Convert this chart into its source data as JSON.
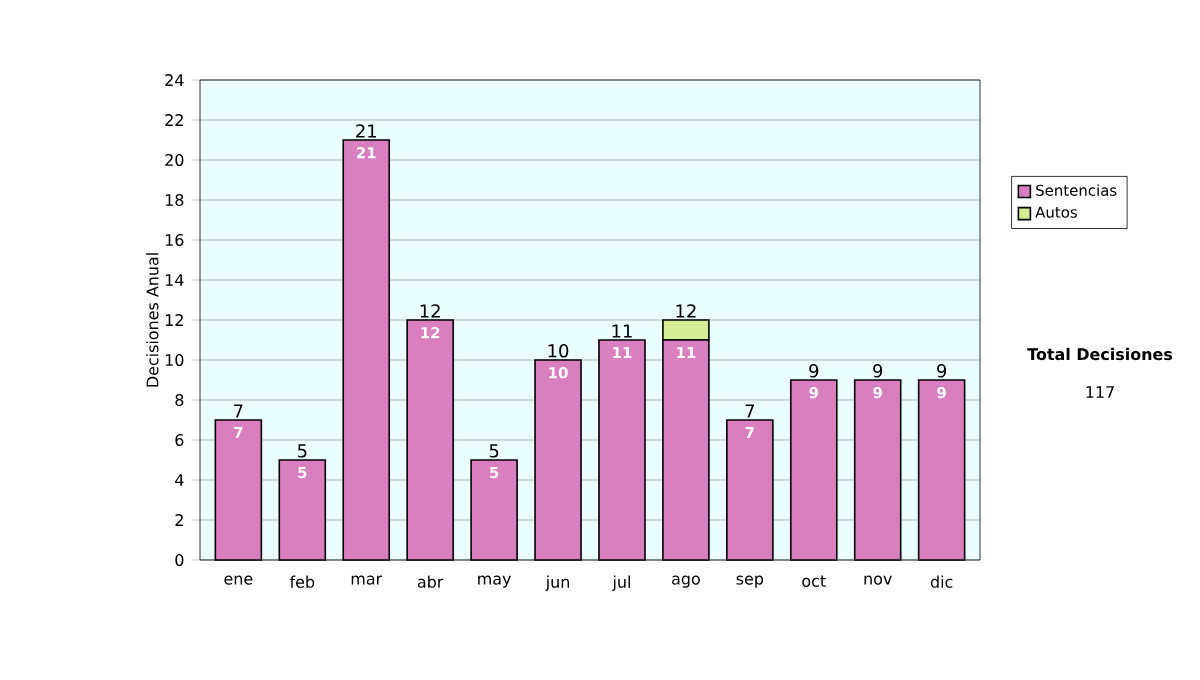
{
  "chart_data": {
    "type": "bar",
    "stacked": true,
    "ylabel": "Decisiones Anual",
    "categories": [
      "ene",
      "feb",
      "mar",
      "abr",
      "may",
      "jun",
      "jul",
      "ago",
      "sep",
      "oct",
      "nov",
      "dic"
    ],
    "series": [
      {
        "name": "Sentencias",
        "color": "#d97fc0",
        "values": [
          7,
          5,
          21,
          12,
          5,
          10,
          11,
          11,
          7,
          9,
          9,
          9
        ],
        "value_labels": [
          "7",
          "5",
          "21",
          "12",
          "5",
          "10",
          "11",
          "11",
          "7",
          "9",
          "9",
          "9"
        ]
      },
      {
        "name": "Autos",
        "color": "#d4ec94",
        "values": [
          0,
          0,
          0,
          0,
          0,
          0,
          0,
          1,
          0,
          0,
          0,
          0
        ]
      }
    ],
    "totals": [
      "7",
      "5",
      "21",
      "12",
      "5",
      "10",
      "11",
      "12",
      "7",
      "9",
      "9",
      "9"
    ],
    "ylim": [
      0,
      24
    ],
    "yticks": [
      0,
      2,
      4,
      6,
      8,
      10,
      12,
      14,
      16,
      18,
      20,
      22,
      24
    ],
    "grid": "y",
    "legend": "right",
    "annotations": [
      "Total Decisiones",
      "117"
    ]
  }
}
